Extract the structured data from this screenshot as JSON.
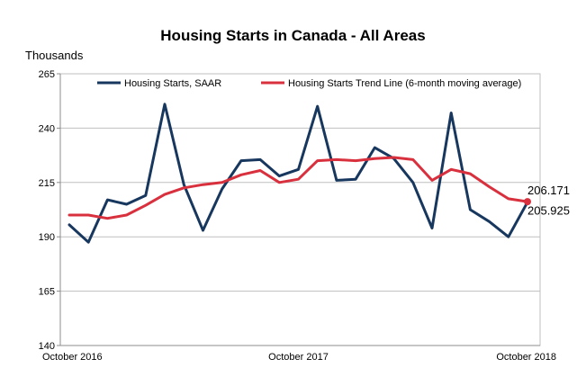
{
  "chart_data": {
    "type": "line",
    "title": "Housing Starts in Canada - All Areas",
    "ylabel": "Thousands",
    "xlabel": "",
    "ylim": [
      140,
      265
    ],
    "yticks": [
      140,
      165,
      190,
      215,
      240,
      265
    ],
    "x_tick_labels": [
      {
        "label": "October 2016",
        "index": 0
      },
      {
        "label": "October 2017",
        "index": 12
      },
      {
        "label": "October 2018",
        "index": 24
      }
    ],
    "x": [
      "Oct 2016",
      "Nov 2016",
      "Dec 2016",
      "Jan 2017",
      "Feb 2017",
      "Mar 2017",
      "Apr 2017",
      "May 2017",
      "Jun 2017",
      "Jul 2017",
      "Aug 2017",
      "Sep 2017",
      "Oct 2017",
      "Nov 2017",
      "Dec 2017",
      "Jan 2018",
      "Feb 2018",
      "Mar 2018",
      "Apr 2018",
      "May 2018",
      "Jun 2018",
      "Jul 2018",
      "Aug 2018",
      "Sep 2018",
      "Oct 2018"
    ],
    "series": [
      {
        "name": "Housing Starts, SAAR",
        "color": "#17375e",
        "values": [
          195.5,
          187.5,
          207,
          205,
          209,
          251,
          214,
          193,
          212,
          225,
          225.5,
          218,
          221,
          250,
          216,
          216.5,
          231,
          226,
          215,
          194,
          247,
          202.5,
          197,
          190,
          205.925
        ]
      },
      {
        "name": "Housing Starts Trend Line (6-month moving average)",
        "color": "#d9303e",
        "values": [
          200,
          200,
          198.5,
          200,
          204.5,
          209.5,
          212.5,
          214,
          215,
          218.5,
          220.5,
          215,
          216.5,
          225,
          225.5,
          225,
          226,
          226.5,
          225.5,
          216,
          221,
          219,
          213,
          207.5,
          206.171
        ]
      }
    ],
    "end_labels": [
      {
        "text": "206.171",
        "series": 1
      },
      {
        "text": "205.925",
        "series": 0
      }
    ],
    "legend_position": "top",
    "grid": {
      "horizontal": true,
      "vertical": false
    }
  }
}
